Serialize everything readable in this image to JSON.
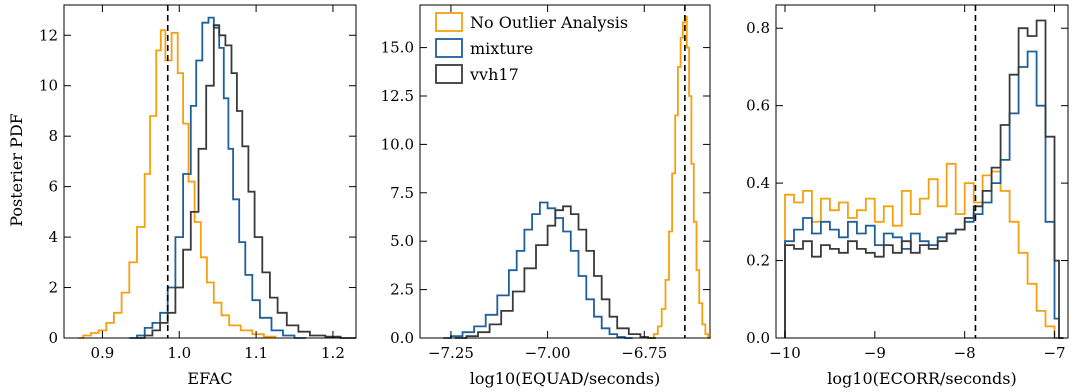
{
  "colors": {
    "no_outlier": "#f5a00f",
    "mixture": "#1f5f9c",
    "vvh17": "#3a3a3a",
    "reference_line": "#000000"
  },
  "legend": {
    "items": [
      {
        "label": "No Outlier Analysis",
        "series": "no_outlier"
      },
      {
        "label": "mixture",
        "series": "mixture"
      },
      {
        "label": "vvh17",
        "series": "vvh17"
      }
    ],
    "placement": "top-left of middle panel"
  },
  "chart_data": [
    {
      "type": "histogram",
      "xlabel": "EFAC",
      "ylabel": "Posterier PDF",
      "xlim": [
        0.85,
        1.23
      ],
      "ylim": [
        0,
        13.2
      ],
      "xticks": [
        0.9,
        1.0,
        1.1,
        1.2
      ],
      "xtick_labels": [
        "0.9",
        "1.0",
        "1.1",
        "1.2"
      ],
      "yticks": [
        0,
        2,
        4,
        6,
        8,
        10,
        12
      ],
      "ytick_labels": [
        "0",
        "2",
        "4",
        "6",
        "8",
        "10",
        "12"
      ],
      "reference_line_x": 0.985,
      "series": [
        {
          "key": "no_outlier",
          "bins": [
            [
              0.869,
              0.0
            ],
            [
              0.875,
              0.1
            ],
            [
              0.885,
              0.2
            ],
            [
              0.895,
              0.3
            ],
            [
              0.905,
              0.6
            ],
            [
              0.915,
              1.0
            ],
            [
              0.925,
              1.8
            ],
            [
              0.935,
              3.0
            ],
            [
              0.945,
              4.4
            ],
            [
              0.955,
              6.5
            ],
            [
              0.962,
              8.8
            ],
            [
              0.97,
              11.4
            ],
            [
              0.976,
              12.2
            ],
            [
              0.982,
              11.0
            ],
            [
              0.99,
              12.1
            ],
            [
              0.998,
              10.5
            ],
            [
              1.005,
              8.5
            ],
            [
              1.012,
              6.2
            ],
            [
              1.02,
              4.6
            ],
            [
              1.028,
              3.2
            ],
            [
              1.036,
              2.2
            ],
            [
              1.045,
              1.4
            ],
            [
              1.055,
              0.9
            ],
            [
              1.065,
              0.5
            ],
            [
              1.08,
              0.3
            ],
            [
              1.095,
              0.15
            ],
            [
              1.11,
              0.05
            ]
          ]
        },
        {
          "key": "mixture",
          "bins": [
            [
              0.935,
              0.0
            ],
            [
              0.945,
              0.1
            ],
            [
              0.955,
              0.4
            ],
            [
              0.965,
              0.6
            ],
            [
              0.975,
              1.0
            ],
            [
              0.985,
              2.0
            ],
            [
              0.995,
              4.0
            ],
            [
              1.005,
              6.5
            ],
            [
              1.015,
              9.2
            ],
            [
              1.022,
              11.0
            ],
            [
              1.03,
              12.5
            ],
            [
              1.038,
              12.7
            ],
            [
              1.045,
              12.3
            ],
            [
              1.052,
              11.5
            ],
            [
              1.058,
              9.5
            ],
            [
              1.064,
              7.5
            ],
            [
              1.07,
              5.5
            ],
            [
              1.078,
              3.8
            ],
            [
              1.086,
              2.5
            ],
            [
              1.095,
              1.5
            ],
            [
              1.105,
              0.8
            ],
            [
              1.12,
              0.3
            ],
            [
              1.135,
              0.1
            ],
            [
              1.15,
              0.0
            ]
          ]
        },
        {
          "key": "vvh17",
          "bins": [
            [
              0.945,
              0.0
            ],
            [
              0.955,
              0.1
            ],
            [
              0.965,
              0.3
            ],
            [
              0.975,
              0.6
            ],
            [
              0.985,
              1.0
            ],
            [
              0.995,
              2.0
            ],
            [
              1.005,
              3.5
            ],
            [
              1.015,
              5.0
            ],
            [
              1.025,
              7.5
            ],
            [
              1.035,
              10.0
            ],
            [
              1.045,
              12.4
            ],
            [
              1.052,
              12.0
            ],
            [
              1.06,
              11.6
            ],
            [
              1.068,
              10.5
            ],
            [
              1.075,
              9.0
            ],
            [
              1.082,
              7.6
            ],
            [
              1.09,
              5.8
            ],
            [
              1.098,
              4.0
            ],
            [
              1.108,
              2.6
            ],
            [
              1.118,
              1.6
            ],
            [
              1.128,
              1.0
            ],
            [
              1.14,
              0.5
            ],
            [
              1.155,
              0.25
            ],
            [
              1.17,
              0.1
            ],
            [
              1.19,
              0.05
            ],
            [
              1.21,
              0.0
            ]
          ]
        }
      ]
    },
    {
      "type": "histogram",
      "xlabel": "log10(EQUAD/seconds)",
      "ylabel": "",
      "xlim": [
        -7.33,
        -6.58
      ],
      "ylim": [
        0,
        17.2
      ],
      "xticks": [
        -7.25,
        -7.0,
        -6.75
      ],
      "xtick_labels": [
        "−7.25",
        "−7.00",
        "−6.75"
      ],
      "yticks": [
        0,
        2.5,
        5.0,
        7.5,
        10.0,
        12.5,
        15.0
      ],
      "ytick_labels": [
        "0.0",
        "2.5",
        "5.0",
        "7.5",
        "10.0",
        "12.5",
        "15.0"
      ],
      "reference_line_x": -6.645,
      "series": [
        {
          "key": "no_outlier",
          "bins": [
            [
              -6.735,
              0.0
            ],
            [
              -6.725,
              0.2
            ],
            [
              -6.715,
              0.6
            ],
            [
              -6.705,
              1.5
            ],
            [
              -6.695,
              3.0
            ],
            [
              -6.686,
              5.5
            ],
            [
              -6.678,
              8.5
            ],
            [
              -6.67,
              11.5
            ],
            [
              -6.663,
              14.0
            ],
            [
              -6.656,
              15.5
            ],
            [
              -6.65,
              16.3
            ],
            [
              -6.645,
              16.6
            ],
            [
              -6.64,
              15.0
            ],
            [
              -6.634,
              12.5
            ],
            [
              -6.628,
              9.0
            ],
            [
              -6.622,
              6.0
            ],
            [
              -6.615,
              3.5
            ],
            [
              -6.608,
              1.8
            ],
            [
              -6.6,
              0.7
            ],
            [
              -6.592,
              0.2
            ],
            [
              -6.585,
              0.0
            ]
          ]
        },
        {
          "key": "mixture",
          "bins": [
            [
              -7.27,
              0.0
            ],
            [
              -7.25,
              0.1
            ],
            [
              -7.22,
              0.3
            ],
            [
              -7.19,
              0.6
            ],
            [
              -7.16,
              1.2
            ],
            [
              -7.13,
              2.2
            ],
            [
              -7.1,
              3.5
            ],
            [
              -7.08,
              4.5
            ],
            [
              -7.06,
              5.6
            ],
            [
              -7.04,
              6.4
            ],
            [
              -7.02,
              7.0
            ],
            [
              -7.0,
              6.7
            ],
            [
              -6.98,
              6.2
            ],
            [
              -6.96,
              5.5
            ],
            [
              -6.94,
              4.5
            ],
            [
              -6.92,
              3.2
            ],
            [
              -6.9,
              2.0
            ],
            [
              -6.88,
              1.1
            ],
            [
              -6.86,
              0.5
            ],
            [
              -6.84,
              0.2
            ],
            [
              -6.82,
              0.05
            ],
            [
              -6.8,
              0.0
            ]
          ]
        },
        {
          "key": "vvh17",
          "bins": [
            [
              -7.24,
              0.0
            ],
            [
              -7.21,
              0.1
            ],
            [
              -7.18,
              0.3
            ],
            [
              -7.15,
              0.7
            ],
            [
              -7.12,
              1.4
            ],
            [
              -7.09,
              2.4
            ],
            [
              -7.06,
              3.6
            ],
            [
              -7.03,
              4.8
            ],
            [
              -7.0,
              5.8
            ],
            [
              -6.98,
              6.6
            ],
            [
              -6.96,
              6.8
            ],
            [
              -6.94,
              6.4
            ],
            [
              -6.92,
              5.6
            ],
            [
              -6.9,
              4.5
            ],
            [
              -6.88,
              3.2
            ],
            [
              -6.86,
              2.0
            ],
            [
              -6.84,
              1.1
            ],
            [
              -6.82,
              0.5
            ],
            [
              -6.79,
              0.2
            ],
            [
              -6.76,
              0.05
            ],
            [
              -6.74,
              0.0
            ]
          ]
        }
      ]
    },
    {
      "type": "histogram",
      "xlabel": "log10(ECORR/seconds)",
      "ylabel": "",
      "xlim": [
        -10.1,
        -6.85
      ],
      "ylim": [
        0,
        0.86
      ],
      "xticks": [
        -10,
        -9,
        -8,
        -7
      ],
      "xtick_labels": [
        "−10",
        "−9",
        "−8",
        "−7"
      ],
      "yticks": [
        0.0,
        0.2,
        0.4,
        0.6,
        0.8
      ],
      "ytick_labels": [
        "0.0",
        "0.2",
        "0.4",
        "0.6",
        "0.8"
      ],
      "reference_line_x": -7.88,
      "series": [
        {
          "key": "no_outlier",
          "bins": [
            [
              -10.0,
              0.37
            ],
            [
              -9.9,
              0.35
            ],
            [
              -9.8,
              0.38
            ],
            [
              -9.7,
              0.3
            ],
            [
              -9.6,
              0.36
            ],
            [
              -9.5,
              0.33
            ],
            [
              -9.4,
              0.35
            ],
            [
              -9.3,
              0.31
            ],
            [
              -9.2,
              0.33
            ],
            [
              -9.1,
              0.36
            ],
            [
              -9.0,
              0.3
            ],
            [
              -8.9,
              0.34
            ],
            [
              -8.8,
              0.29
            ],
            [
              -8.7,
              0.38
            ],
            [
              -8.6,
              0.32
            ],
            [
              -8.5,
              0.36
            ],
            [
              -8.4,
              0.41
            ],
            [
              -8.3,
              0.34
            ],
            [
              -8.2,
              0.45
            ],
            [
              -8.1,
              0.32
            ],
            [
              -8.0,
              0.4
            ],
            [
              -7.9,
              0.35
            ],
            [
              -7.8,
              0.42
            ],
            [
              -7.7,
              0.43
            ],
            [
              -7.6,
              0.38
            ],
            [
              -7.5,
              0.3
            ],
            [
              -7.4,
              0.22
            ],
            [
              -7.3,
              0.14
            ],
            [
              -7.2,
              0.07
            ],
            [
              -7.1,
              0.03
            ],
            [
              -7.0,
              0.0
            ]
          ]
        },
        {
          "key": "mixture",
          "bins": [
            [
              -10.0,
              0.25
            ],
            [
              -9.9,
              0.28
            ],
            [
              -9.8,
              0.31
            ],
            [
              -9.7,
              0.27
            ],
            [
              -9.6,
              0.3
            ],
            [
              -9.5,
              0.28
            ],
            [
              -9.4,
              0.26
            ],
            [
              -9.3,
              0.3
            ],
            [
              -9.2,
              0.27
            ],
            [
              -9.1,
              0.29
            ],
            [
              -9.0,
              0.24
            ],
            [
              -8.9,
              0.27
            ],
            [
              -8.8,
              0.26
            ],
            [
              -8.7,
              0.23
            ],
            [
              -8.6,
              0.27
            ],
            [
              -8.5,
              0.25
            ],
            [
              -8.4,
              0.24
            ],
            [
              -8.3,
              0.26
            ],
            [
              -8.2,
              0.27
            ],
            [
              -8.1,
              0.28
            ],
            [
              -8.0,
              0.3
            ],
            [
              -7.9,
              0.32
            ],
            [
              -7.8,
              0.35
            ],
            [
              -7.7,
              0.4
            ],
            [
              -7.6,
              0.46
            ],
            [
              -7.5,
              0.58
            ],
            [
              -7.4,
              0.7
            ],
            [
              -7.3,
              0.74
            ],
            [
              -7.2,
              0.6
            ],
            [
              -7.1,
              0.3
            ],
            [
              -7.0,
              0.05
            ],
            [
              -6.95,
              0.0
            ]
          ]
        },
        {
          "key": "vvh17",
          "bins": [
            [
              -10.0,
              0.24
            ],
            [
              -9.9,
              0.23
            ],
            [
              -9.8,
              0.25
            ],
            [
              -9.7,
              0.21
            ],
            [
              -9.6,
              0.24
            ],
            [
              -9.5,
              0.23
            ],
            [
              -9.4,
              0.22
            ],
            [
              -9.3,
              0.25
            ],
            [
              -9.2,
              0.23
            ],
            [
              -9.1,
              0.22
            ],
            [
              -9.0,
              0.21
            ],
            [
              -8.9,
              0.24
            ],
            [
              -8.8,
              0.22
            ],
            [
              -8.7,
              0.25
            ],
            [
              -8.6,
              0.22
            ],
            [
              -8.5,
              0.24
            ],
            [
              -8.4,
              0.23
            ],
            [
              -8.3,
              0.25
            ],
            [
              -8.2,
              0.27
            ],
            [
              -8.1,
              0.28
            ],
            [
              -8.0,
              0.31
            ],
            [
              -7.9,
              0.34
            ],
            [
              -7.8,
              0.38
            ],
            [
              -7.7,
              0.44
            ],
            [
              -7.6,
              0.55
            ],
            [
              -7.5,
              0.68
            ],
            [
              -7.4,
              0.8
            ],
            [
              -7.3,
              0.78
            ],
            [
              -7.2,
              0.82
            ],
            [
              -7.1,
              0.52
            ],
            [
              -7.0,
              0.2
            ],
            [
              -6.95,
              0.0
            ]
          ]
        }
      ]
    }
  ]
}
